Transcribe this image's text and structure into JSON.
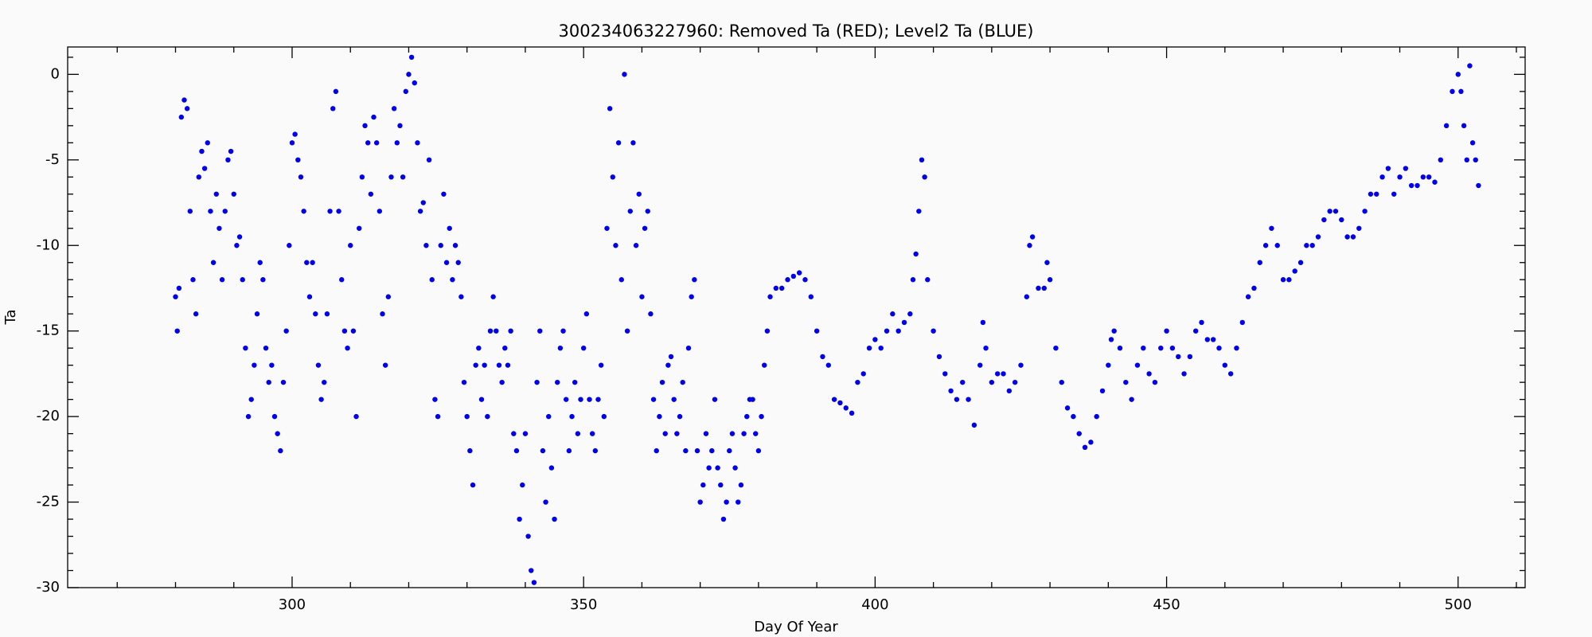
{
  "chart_data": {
    "type": "scatter",
    "title": "300234063227960: Removed Ta (RED); Level2 Ta (BLUE)",
    "x_label": "Day Of Year",
    "y_label": "Ta",
    "color": "#0000ee",
    "xlim": [
      261.5,
      511.5
    ],
    "ylim": [
      -30,
      1.6
    ],
    "xticks": [
      300,
      350,
      400,
      450,
      500
    ],
    "yticks": [
      -30,
      -25,
      -20,
      -15,
      -10,
      -5,
      0
    ],
    "xminorticks": [
      270,
      280,
      290,
      310,
      320,
      330,
      340,
      360,
      370,
      380,
      390,
      410,
      420,
      430,
      440,
      460,
      470,
      480,
      490,
      510
    ],
    "yminorticks": [
      -29,
      -28,
      -27,
      -26,
      -24,
      -23,
      -22,
      -21,
      -19,
      -18,
      -17,
      -16,
      -14,
      -13,
      -12,
      -11,
      -9,
      -8,
      -7,
      -6,
      -4,
      -3,
      -2,
      -1,
      1
    ],
    "x": [
      280,
      280.3,
      280.6,
      281,
      281.5,
      282,
      282.5,
      283,
      283.5,
      284,
      284.5,
      285,
      285.5,
      286,
      286.5,
      287,
      287.5,
      288,
      288.5,
      289,
      289.5,
      290,
      290.5,
      291,
      291.5,
      292,
      292.5,
      293,
      293.5,
      294,
      294.5,
      295,
      295.5,
      296,
      296.5,
      297,
      297.5,
      298,
      298.5,
      299,
      299.5,
      300,
      300.5,
      301,
      301.5,
      302,
      302.5,
      303,
      303.5,
      304,
      304.5,
      305,
      305.5,
      306,
      306.5,
      307,
      307.5,
      308,
      308.5,
      309,
      309.5,
      310,
      310.5,
      311,
      311.5,
      312,
      312.5,
      313,
      313.5,
      314,
      314.5,
      315,
      315.5,
      316,
      316.5,
      317,
      317.5,
      318,
      318.5,
      319,
      319.5,
      320,
      320.5,
      321,
      321.5,
      322,
      322.5,
      323,
      323.5,
      324,
      324.5,
      325,
      325.5,
      326,
      326.5,
      327,
      327.5,
      328,
      328.5,
      329,
      329.5,
      330,
      330.5,
      331,
      331.5,
      332,
      332.5,
      333,
      333.5,
      334,
      334.5,
      335,
      335.5,
      336,
      336.5,
      337,
      337.5,
      338,
      338.5,
      339,
      339.5,
      340,
      340.5,
      341,
      341.5,
      342,
      342.5,
      343,
      343.5,
      344,
      344.5,
      345,
      345.5,
      346,
      346.5,
      347,
      347.5,
      348,
      348.5,
      349,
      349.5,
      350,
      350.5,
      351,
      351.5,
      352,
      352.5,
      353,
      353.5,
      354,
      354.5,
      355,
      355.5,
      356,
      356.5,
      357,
      357.5,
      358,
      358.5,
      359,
      359.5,
      360,
      360.5,
      361,
      361.5,
      362,
      362.5,
      363,
      363.5,
      364,
      364.5,
      365,
      365.5,
      366,
      366.5,
      367,
      367.5,
      368,
      368.5,
      369,
      369.5,
      370,
      370.5,
      371,
      371.5,
      372,
      372.5,
      373,
      373.5,
      374,
      374.5,
      375,
      375.5,
      376,
      376.5,
      377,
      377.5,
      378,
      378.5,
      379,
      379.5,
      380,
      380.5,
      381,
      381.5,
      382,
      383,
      384,
      385,
      386,
      387,
      388,
      389,
      390,
      391,
      392,
      393,
      394,
      395,
      396,
      397,
      398,
      399,
      400,
      401,
      402,
      403,
      404,
      405,
      406,
      406.5,
      407,
      407.5,
      408,
      408.5,
      409,
      410,
      411,
      412,
      413,
      414,
      415,
      416,
      417,
      418,
      418.5,
      419,
      420,
      421,
      422,
      423,
      424,
      425,
      426,
      426.5,
      427,
      428,
      429,
      429.5,
      430,
      431,
      432,
      433,
      434,
      435,
      436,
      437,
      438,
      439,
      440,
      440.5,
      441,
      442,
      443,
      444,
      445,
      446,
      447,
      448,
      449,
      450,
      451,
      452,
      453,
      454,
      455,
      456,
      457,
      458,
      459,
      460,
      461,
      462,
      463,
      464,
      465,
      466,
      467,
      468,
      469,
      470,
      471,
      472,
      473,
      474,
      475,
      476,
      477,
      478,
      479,
      480,
      481,
      482,
      483,
      484,
      485,
      486,
      487,
      488,
      489,
      490,
      491,
      492,
      493,
      494,
      495,
      496,
      497,
      498,
      499,
      500,
      500.5,
      501,
      501.5,
      502,
      502.5,
      503,
      503.5
    ],
    "values": [
      -13,
      -15,
      -12.5,
      -2.5,
      -1.5,
      -2,
      -8,
      -12,
      -14,
      -6,
      -4.5,
      -5.5,
      -4,
      -8,
      -11,
      -7,
      -9,
      -12,
      -8,
      -5,
      -4.5,
      -7,
      -10,
      -9.5,
      -12,
      -16,
      -20,
      -19,
      -17,
      -14,
      -11,
      -12,
      -16,
      -18,
      -17,
      -20,
      -21,
      -22,
      -18,
      -15,
      -10,
      -4,
      -3.5,
      -5,
      -6,
      -8,
      -11,
      -13,
      -11,
      -14,
      -17,
      -19,
      -18,
      -14,
      -8,
      -2,
      -1,
      -8,
      -12,
      -15,
      -16,
      -10,
      -15,
      -20,
      -9,
      -6,
      -3,
      -4,
      -7,
      -2.5,
      -4,
      -8,
      -14,
      -17,
      -13,
      -6,
      -2,
      -4,
      -3,
      -6,
      -1,
      0,
      1,
      -0.5,
      -4,
      -8,
      -7.5,
      -10,
      -5,
      -12,
      -19,
      -20,
      -10,
      -7,
      -11,
      -9,
      -12,
      -10,
      -11,
      -13,
      -18,
      -20,
      -22,
      -24,
      -17,
      -16,
      -19,
      -17,
      -20,
      -15,
      -13,
      -15,
      -17,
      -18,
      -16,
      -17,
      -15,
      -21,
      -22,
      -26,
      -24,
      -21,
      -27,
      -29,
      -29.7,
      -18,
      -15,
      -22,
      -25,
      -20,
      -23,
      -26,
      -18,
      -16,
      -15,
      -19,
      -22,
      -20,
      -18,
      -21,
      -19,
      -16,
      -14,
      -19,
      -21,
      -22,
      -19,
      -17,
      -20,
      -9,
      -2,
      -6,
      -10,
      -4,
      -12,
      0,
      -15,
      -8,
      -4,
      -10,
      -7,
      -13,
      -9,
      -8,
      -14,
      -19,
      -22,
      -20,
      -18,
      -21,
      -17,
      -16.5,
      -19,
      -21,
      -20,
      -18,
      -22,
      -16,
      -13,
      -12,
      -22,
      -25,
      -24,
      -21,
      -23,
      -22,
      -19,
      -23,
      -24,
      -26,
      -25,
      -22,
      -21,
      -23,
      -25,
      -24,
      -21,
      -20,
      -19,
      -19,
      -21,
      -22,
      -20,
      -17,
      -15,
      -13,
      -12.5,
      -12.5,
      -12,
      -11.8,
      -11.6,
      -12,
      -13,
      -15,
      -16.5,
      -17,
      -19,
      -19.2,
      -19.5,
      -19.8,
      -18,
      -17.5,
      -16,
      -15.5,
      -16,
      -15,
      -14,
      -15,
      -14.5,
      -14,
      -12,
      -10.5,
      -8,
      -5,
      -6,
      -12,
      -15,
      -16.5,
      -17.5,
      -18.5,
      -19,
      -18,
      -19,
      -20.5,
      -17,
      -14.5,
      -16,
      -18,
      -17.5,
      -17.5,
      -18.5,
      -18,
      -17,
      -13,
      -10,
      -9.5,
      -12.5,
      -12.5,
      -11,
      -12,
      -16,
      -18,
      -19.5,
      -20,
      -21,
      -21.8,
      -21.5,
      -20,
      -18.5,
      -17,
      -15.5,
      -15,
      -16,
      -18,
      -19,
      -17,
      -16,
      -17.5,
      -18,
      -16,
      -15,
      -16,
      -16.5,
      -17.5,
      -16.5,
      -15,
      -14.5,
      -15.5,
      -15.5,
      -16,
      -17,
      -17.5,
      -16,
      -14.5,
      -13,
      -12.5,
      -11,
      -10,
      -9,
      -10,
      -12,
      -12,
      -11.5,
      -11,
      -10,
      -10,
      -9.5,
      -8.5,
      -8,
      -8,
      -8.5,
      -9.5,
      -9.5,
      -9,
      -8,
      -7,
      -7,
      -6,
      -5.5,
      -7,
      -6,
      -5.5,
      -6.5,
      -6.5,
      -6,
      -6,
      -6.3,
      -5,
      -3,
      -1,
      0,
      -1,
      -3,
      -5,
      0.5,
      -4,
      -5,
      -6.5
    ]
  }
}
